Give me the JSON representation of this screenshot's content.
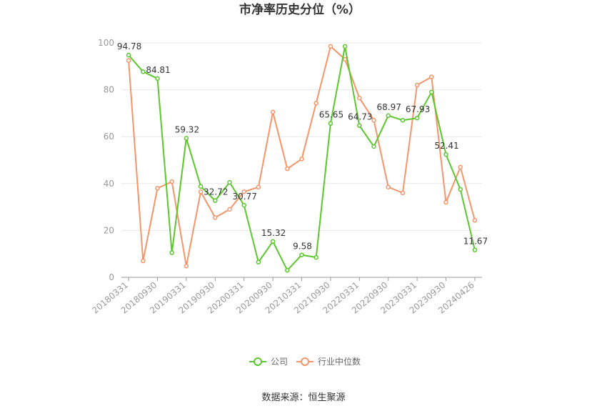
{
  "chart_data": {
    "type": "line",
    "title": "市净率历史分位（%）",
    "ylim": [
      0,
      100
    ],
    "yticks": [
      0,
      20,
      40,
      60,
      80,
      100
    ],
    "x_tick_labels": [
      "20180331",
      "20180930",
      "20190331",
      "20190930",
      "20200331",
      "20200930",
      "20210331",
      "20210930",
      "20220331",
      "20220930",
      "20230331",
      "20230930",
      "20240426"
    ],
    "x": [
      "20180331",
      "20180630",
      "20180930",
      "20181231",
      "20190331",
      "20190630",
      "20190930",
      "20191231",
      "20200331",
      "20200630",
      "20200930",
      "20201231",
      "20210331",
      "20210630",
      "20210930",
      "20211231",
      "20220331",
      "20220630",
      "20220930",
      "20221231",
      "20230331",
      "20230630",
      "20230930",
      "20231231",
      "20240426"
    ],
    "series": [
      {
        "name": "公司",
        "color": "#5BC72D",
        "values": [
          94.78,
          87.7,
          84.81,
          10.5,
          59.32,
          38.8,
          32.72,
          40.5,
          30.77,
          6.5,
          15.32,
          3.0,
          9.58,
          8.5,
          65.65,
          98.5,
          64.73,
          55.8,
          68.97,
          67.0,
          67.93,
          79.0,
          52.41,
          37.5,
          11.67
        ]
      },
      {
        "name": "行业中位数",
        "color": "#F4956A",
        "values": [
          92.5,
          7.0,
          38.0,
          40.8,
          4.8,
          36.5,
          25.5,
          29.0,
          36.5,
          38.5,
          70.5,
          46.3,
          50.5,
          74.3,
          98.5,
          93.0,
          76.5,
          67.0,
          38.5,
          36.0,
          82.0,
          85.5,
          32.0,
          47.0,
          24.3
        ]
      }
    ],
    "data_labels": [
      {
        "series": 0,
        "index": 0,
        "text": "94.78"
      },
      {
        "series": 0,
        "index": 2,
        "text": "84.81"
      },
      {
        "series": 0,
        "index": 4,
        "text": "59.32"
      },
      {
        "series": 0,
        "index": 6,
        "text": "32.72"
      },
      {
        "series": 0,
        "index": 8,
        "text": "30.77"
      },
      {
        "series": 0,
        "index": 10,
        "text": "15.32"
      },
      {
        "series": 0,
        "index": 12,
        "text": "9.58"
      },
      {
        "series": 0,
        "index": 14,
        "text": "65.65"
      },
      {
        "series": 0,
        "index": 16,
        "text": "64.73"
      },
      {
        "series": 0,
        "index": 18,
        "text": "68.97"
      },
      {
        "series": 0,
        "index": 20,
        "text": "67.93"
      },
      {
        "series": 0,
        "index": 22,
        "text": "52.41"
      },
      {
        "series": 0,
        "index": 24,
        "text": "11.67"
      }
    ],
    "legend_position": "bottom",
    "grid": true
  },
  "source": "数据来源：恒生聚源"
}
